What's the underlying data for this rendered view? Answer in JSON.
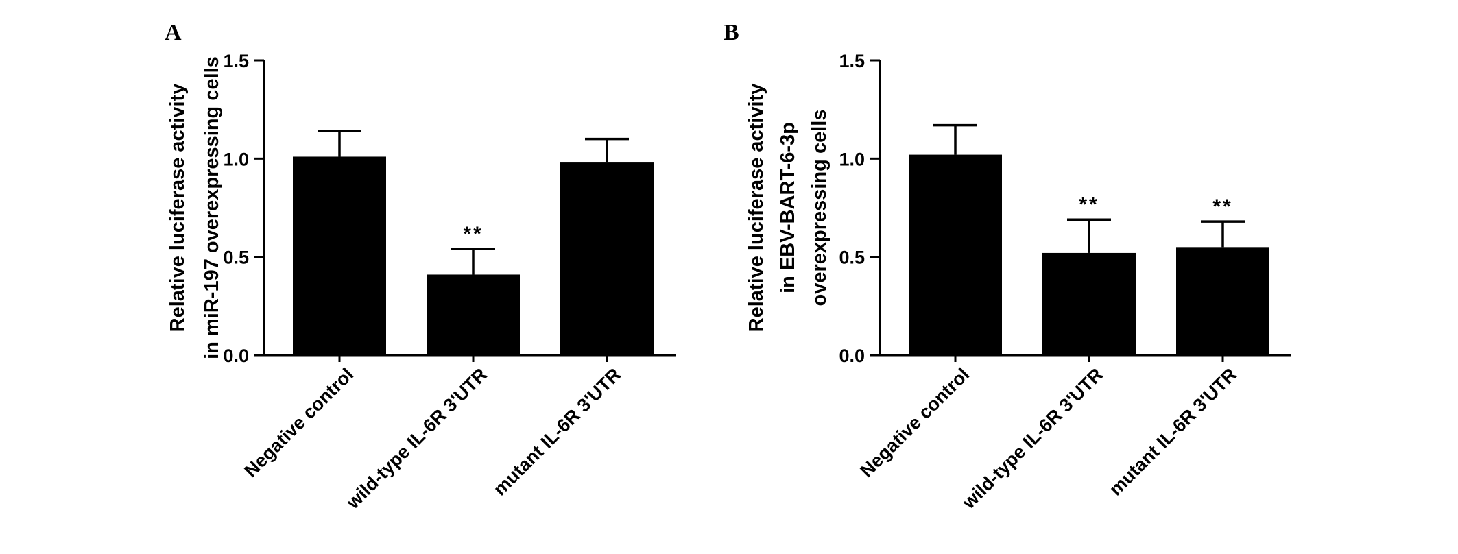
{
  "chart_data": [
    {
      "type": "bar",
      "panel": "A",
      "ylabel_lines": [
        "Relative luciferase activity",
        "in miR-197 overexpressing cells"
      ],
      "categories": [
        "Negative control",
        "wild-type IL-6R 3'UTR",
        "mutant IL-6R 3'UTR"
      ],
      "values": [
        1.01,
        0.41,
        0.98
      ],
      "errors": [
        0.13,
        0.13,
        0.12
      ],
      "significance": [
        "",
        "**",
        ""
      ],
      "ylim": [
        0,
        1.5
      ],
      "yticks": [
        "0.0",
        "0.5",
        "1.0",
        "1.5"
      ],
      "grid": false
    },
    {
      "type": "bar",
      "panel": "B",
      "ylabel_lines": [
        "Relative luciferase activity",
        "in EBV-BART-6-3p",
        "overexpressing cells"
      ],
      "categories": [
        "Negative control",
        "wild-type IL-6R 3'UTR",
        "mutant IL-6R 3'UTR"
      ],
      "values": [
        1.02,
        0.52,
        0.55
      ],
      "errors": [
        0.15,
        0.17,
        0.13
      ],
      "significance": [
        "",
        "**",
        "**"
      ],
      "ylim": [
        0,
        1.5
      ],
      "yticks": [
        "0.0",
        "0.5",
        "1.0",
        "1.5"
      ],
      "grid": false
    }
  ],
  "colors": {
    "bar": "#000000",
    "axis": "#000000",
    "background": "#ffffff"
  }
}
